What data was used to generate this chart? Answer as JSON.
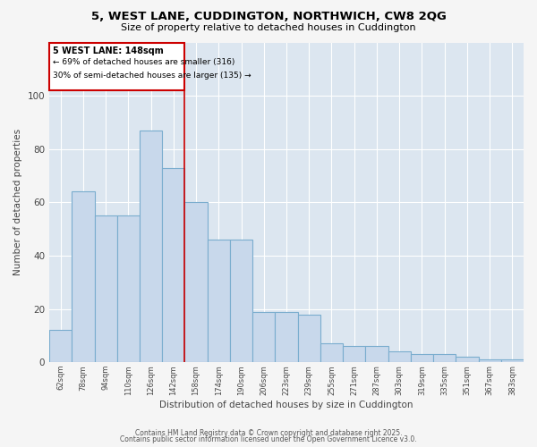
{
  "title": "5, WEST LANE, CUDDINGTON, NORTHWICH, CW8 2QG",
  "subtitle": "Size of property relative to detached houses in Cuddington",
  "xlabel": "Distribution of detached houses by size in Cuddington",
  "ylabel": "Number of detached properties",
  "bar_color": "#c8d8eb",
  "bar_edge_color": "#7aadce",
  "annotation_box_color": "#cc0000",
  "vline_color": "#cc0000",
  "annotation_title": "5 WEST LANE: 148sqm",
  "annotation_line1": "← 69% of detached houses are smaller (316)",
  "annotation_line2": "30% of semi-detached houses are larger (135) →",
  "categories": [
    "62sqm",
    "78sqm",
    "94sqm",
    "110sqm",
    "126sqm",
    "142sqm",
    "158sqm",
    "174sqm",
    "190sqm",
    "206sqm",
    "223sqm",
    "239sqm",
    "255sqm",
    "271sqm",
    "287sqm",
    "303sqm",
    "319sqm",
    "335sqm",
    "351sqm",
    "367sqm",
    "383sqm"
  ],
  "bar_values": [
    12,
    64,
    55,
    55,
    87,
    73,
    60,
    46,
    46,
    19,
    19,
    18,
    7,
    6,
    6,
    4,
    3,
    3,
    2,
    1,
    1
  ],
  "ylim": [
    0,
    120
  ],
  "yticks": [
    0,
    20,
    40,
    60,
    80,
    100
  ],
  "background_color": "#dce6f0",
  "fig_background": "#f5f5f5",
  "footer1": "Contains HM Land Registry data © Crown copyright and database right 2025.",
  "footer2": "Contains public sector information licensed under the Open Government Licence v3.0."
}
